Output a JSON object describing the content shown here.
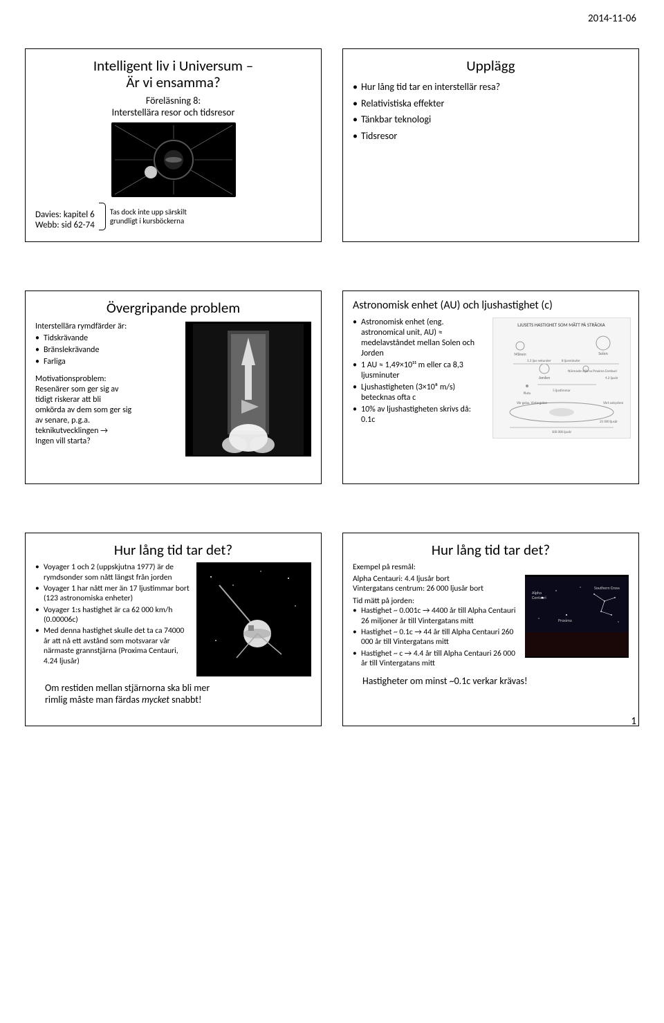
{
  "header": {
    "date": "2014-11-06"
  },
  "footer": {
    "page": "1"
  },
  "slide1": {
    "title_l1": "Intelligent liv i Universum –",
    "title_l2": "Är vi ensamma?",
    "subtitle_l1": "Föreläsning 8:",
    "subtitle_l2": "Interstellära resor och tidsresor",
    "ref1": "Davies: kapitel 6",
    "ref2": "Webb: sid 62-74",
    "note_l1": "Tas dock inte upp särskilt",
    "note_l2": "grundligt i kursböckerna"
  },
  "slide2": {
    "title": "Upplägg",
    "items": [
      "Hur lång tid tar en interstellär resa?",
      "Relativistiska effekter",
      "Tänkbar teknologi",
      "Tidsresor"
    ]
  },
  "slide3": {
    "title": "Övergripande problem",
    "intro": "Interstellära rymdfärder är:",
    "items1": [
      "Tidskrävande",
      "Bränslekrävande",
      "Farliga"
    ],
    "motiv_label": "Motivationsproblem:",
    "motiv_l1": "Resenärer som ger sig av",
    "motiv_l2": "tidigt riskerar att bli",
    "motiv_l3": "omkörda av dem som ger sig",
    "motiv_l4": "av senare, p.g.a.",
    "motiv_l5": "teknikutvecklingen →",
    "motiv_l6": "Ingen vill starta?"
  },
  "slide4": {
    "title": "Astronomisk enhet (AU) och ljushastighet (c)",
    "items": [
      "Astronomisk enhet (eng. astronomical unit, AU) ≈ medelavståndet mellan Solen och Jorden",
      "1 AU ≈ 1,49×10¹¹ m eller ca 8,3 ljusminuter",
      "Ljushastigheten (3×10⁸ m/s) betecknas ofta c",
      "10% av ljushastigheten skrivs då: 0.1c"
    ],
    "diagram_caption": "LJUSETS HASTIGHET SOM MÄTT PÅ STRÄCKA"
  },
  "slide5": {
    "title": "Hur lång tid tar det?",
    "items": [
      "Voyager 1 och 2 (uppskjutna 1977) är de rymdsonder som nått längst från jorden",
      "Voyager 1 har nått mer än 17 ljustimmar bort (123 astronomiska enheter)",
      "Voyager 1:s hastighet är ca 62 000 km/h (0.00006c)",
      "Med denna hastighet skulle det ta ca 74000 år att nå ett avstånd som motsvarar vår närmaste grannstjärna (Proxima Centauri, 4.24 ljusår)"
    ],
    "closing_l1": "Om restiden mellan stjärnorna ska bli mer",
    "closing_l2": "rimlig måste man färdas mycket snabbt!"
  },
  "slide6": {
    "title": "Hur lång tid tar det?",
    "ex_label": "Exempel på resmål:",
    "ex1": "Alpha Centauri: 4.4 ljusår bort",
    "ex2": "Vintergatans centrum: 26 000 ljusår bort",
    "time_label": "Tid mätt på jorden:",
    "items": [
      "Hastighet ~ 0.001c → 4400 år till Alpha Centauri 26 miljoner år till Vintergatans mitt",
      "Hastighet ~ 0.1c → 44 år till Alpha Centauri 260 000 år till Vintergatans mitt",
      "Hastighet ~ c → 4.4 år till Alpha Centauri 26 000 år till Vintergatans mitt"
    ],
    "closing": "Hastigheter om minst ~0.1c verkar krävas!"
  }
}
